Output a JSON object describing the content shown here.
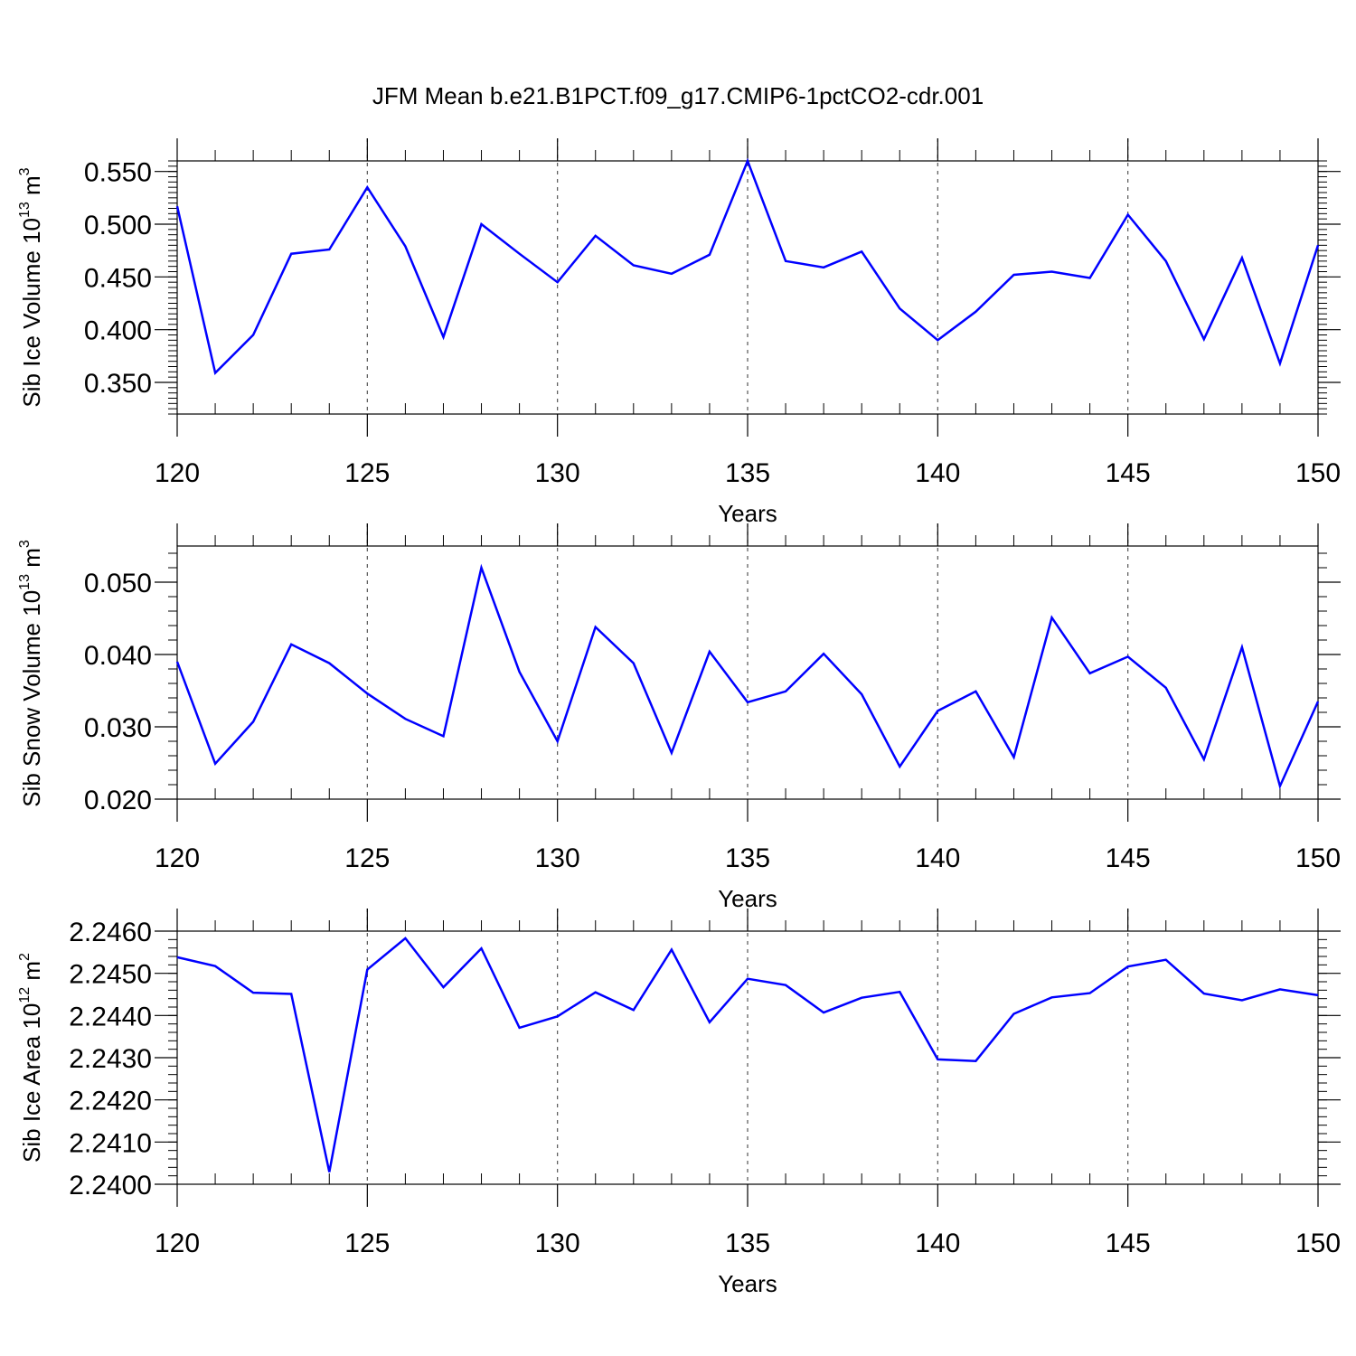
{
  "title": "JFM Mean b.e21.B1PCT.f09_g17.CMIP6-1pctCO2-cdr.001",
  "chart_data": [
    {
      "type": "line",
      "ylabel": "Sib Ice Volume",
      "ylabel_exp": "10",
      "ylabel_exp_power": "13",
      "ylabel_unit": "m",
      "ylabel_unit_power": "3",
      "xlabel": "Years",
      "xlim": [
        120,
        150
      ],
      "ylim": [
        0.32,
        0.56
      ],
      "x_ticks": [
        "120",
        "125",
        "130",
        "135",
        "140",
        "145",
        "150"
      ],
      "y_ticks": [
        "0.350",
        "0.400",
        "0.450",
        "0.500",
        "0.550"
      ],
      "grid": "vertical dashed at major x ticks",
      "line_color": "#0000ff",
      "x": [
        120,
        121,
        122,
        123,
        124,
        125,
        126,
        127,
        128,
        129,
        130,
        131,
        132,
        133,
        134,
        135,
        136,
        137,
        138,
        139,
        140,
        141,
        142,
        143,
        144,
        145,
        146,
        147,
        148,
        149,
        150
      ],
      "values": [
        0.517,
        0.359,
        0.395,
        0.472,
        0.476,
        0.535,
        0.479,
        0.393,
        0.5,
        0.472,
        0.445,
        0.489,
        0.461,
        0.453,
        0.471,
        0.56,
        0.465,
        0.459,
        0.474,
        0.42,
        0.39,
        0.417,
        0.452,
        0.455,
        0.449,
        0.509,
        0.465,
        0.391,
        0.468,
        0.368,
        0.48
      ]
    },
    {
      "type": "line",
      "ylabel": "Sib Snow Volume",
      "ylabel_exp": "10",
      "ylabel_exp_power": "13",
      "ylabel_unit": "m",
      "ylabel_unit_power": "3",
      "xlabel": "Years",
      "xlim": [
        120,
        150
      ],
      "ylim": [
        0.02,
        0.055
      ],
      "x_ticks": [
        "120",
        "125",
        "130",
        "135",
        "140",
        "145",
        "150"
      ],
      "y_ticks": [
        "0.020",
        "0.030",
        "0.040",
        "0.050"
      ],
      "grid": "vertical dashed at major x ticks",
      "line_color": "#0000ff",
      "x": [
        120,
        121,
        122,
        123,
        124,
        125,
        126,
        127,
        128,
        129,
        130,
        131,
        132,
        133,
        134,
        135,
        136,
        137,
        138,
        139,
        140,
        141,
        142,
        143,
        144,
        145,
        146,
        147,
        148,
        149,
        150
      ],
      "values": [
        0.039,
        0.0249,
        0.0307,
        0.0414,
        0.0388,
        0.0346,
        0.0311,
        0.0287,
        0.052,
        0.0376,
        0.028,
        0.0438,
        0.0388,
        0.0264,
        0.0404,
        0.0334,
        0.0349,
        0.0401,
        0.0345,
        0.0245,
        0.0322,
        0.0349,
        0.0258,
        0.0451,
        0.0374,
        0.0397,
        0.0354,
        0.0255,
        0.041,
        0.0218,
        0.0335
      ]
    },
    {
      "type": "line",
      "ylabel": "Sib Ice Area",
      "ylabel_exp": "10",
      "ylabel_exp_power": "12",
      "ylabel_unit": "m",
      "ylabel_unit_power": "2",
      "xlabel": "Years",
      "xlim": [
        120,
        150
      ],
      "ylim": [
        2.24,
        2.246
      ],
      "x_ticks": [
        "120",
        "125",
        "130",
        "135",
        "140",
        "145",
        "150"
      ],
      "y_ticks": [
        "2.2400",
        "2.2410",
        "2.2420",
        "2.2430",
        "2.2440",
        "2.2450",
        "2.2460"
      ],
      "grid": "vertical dashed at major x ticks",
      "line_color": "#0000ff",
      "x": [
        120,
        121,
        122,
        123,
        124,
        125,
        126,
        127,
        128,
        129,
        130,
        131,
        132,
        133,
        134,
        135,
        136,
        137,
        138,
        139,
        140,
        141,
        142,
        143,
        144,
        145,
        146,
        147,
        148,
        149,
        150
      ],
      "values": [
        2.24538,
        2.24517,
        2.24454,
        2.24451,
        2.24029,
        2.24509,
        2.24583,
        2.24467,
        2.24559,
        2.24371,
        2.24398,
        2.24455,
        2.24413,
        2.24556,
        2.24384,
        2.24487,
        2.24472,
        2.24407,
        2.24442,
        2.24456,
        2.24296,
        2.24292,
        2.24404,
        2.24443,
        2.24453,
        2.24516,
        2.24532,
        2.24452,
        2.24436,
        2.24462,
        2.24448
      ]
    }
  ]
}
